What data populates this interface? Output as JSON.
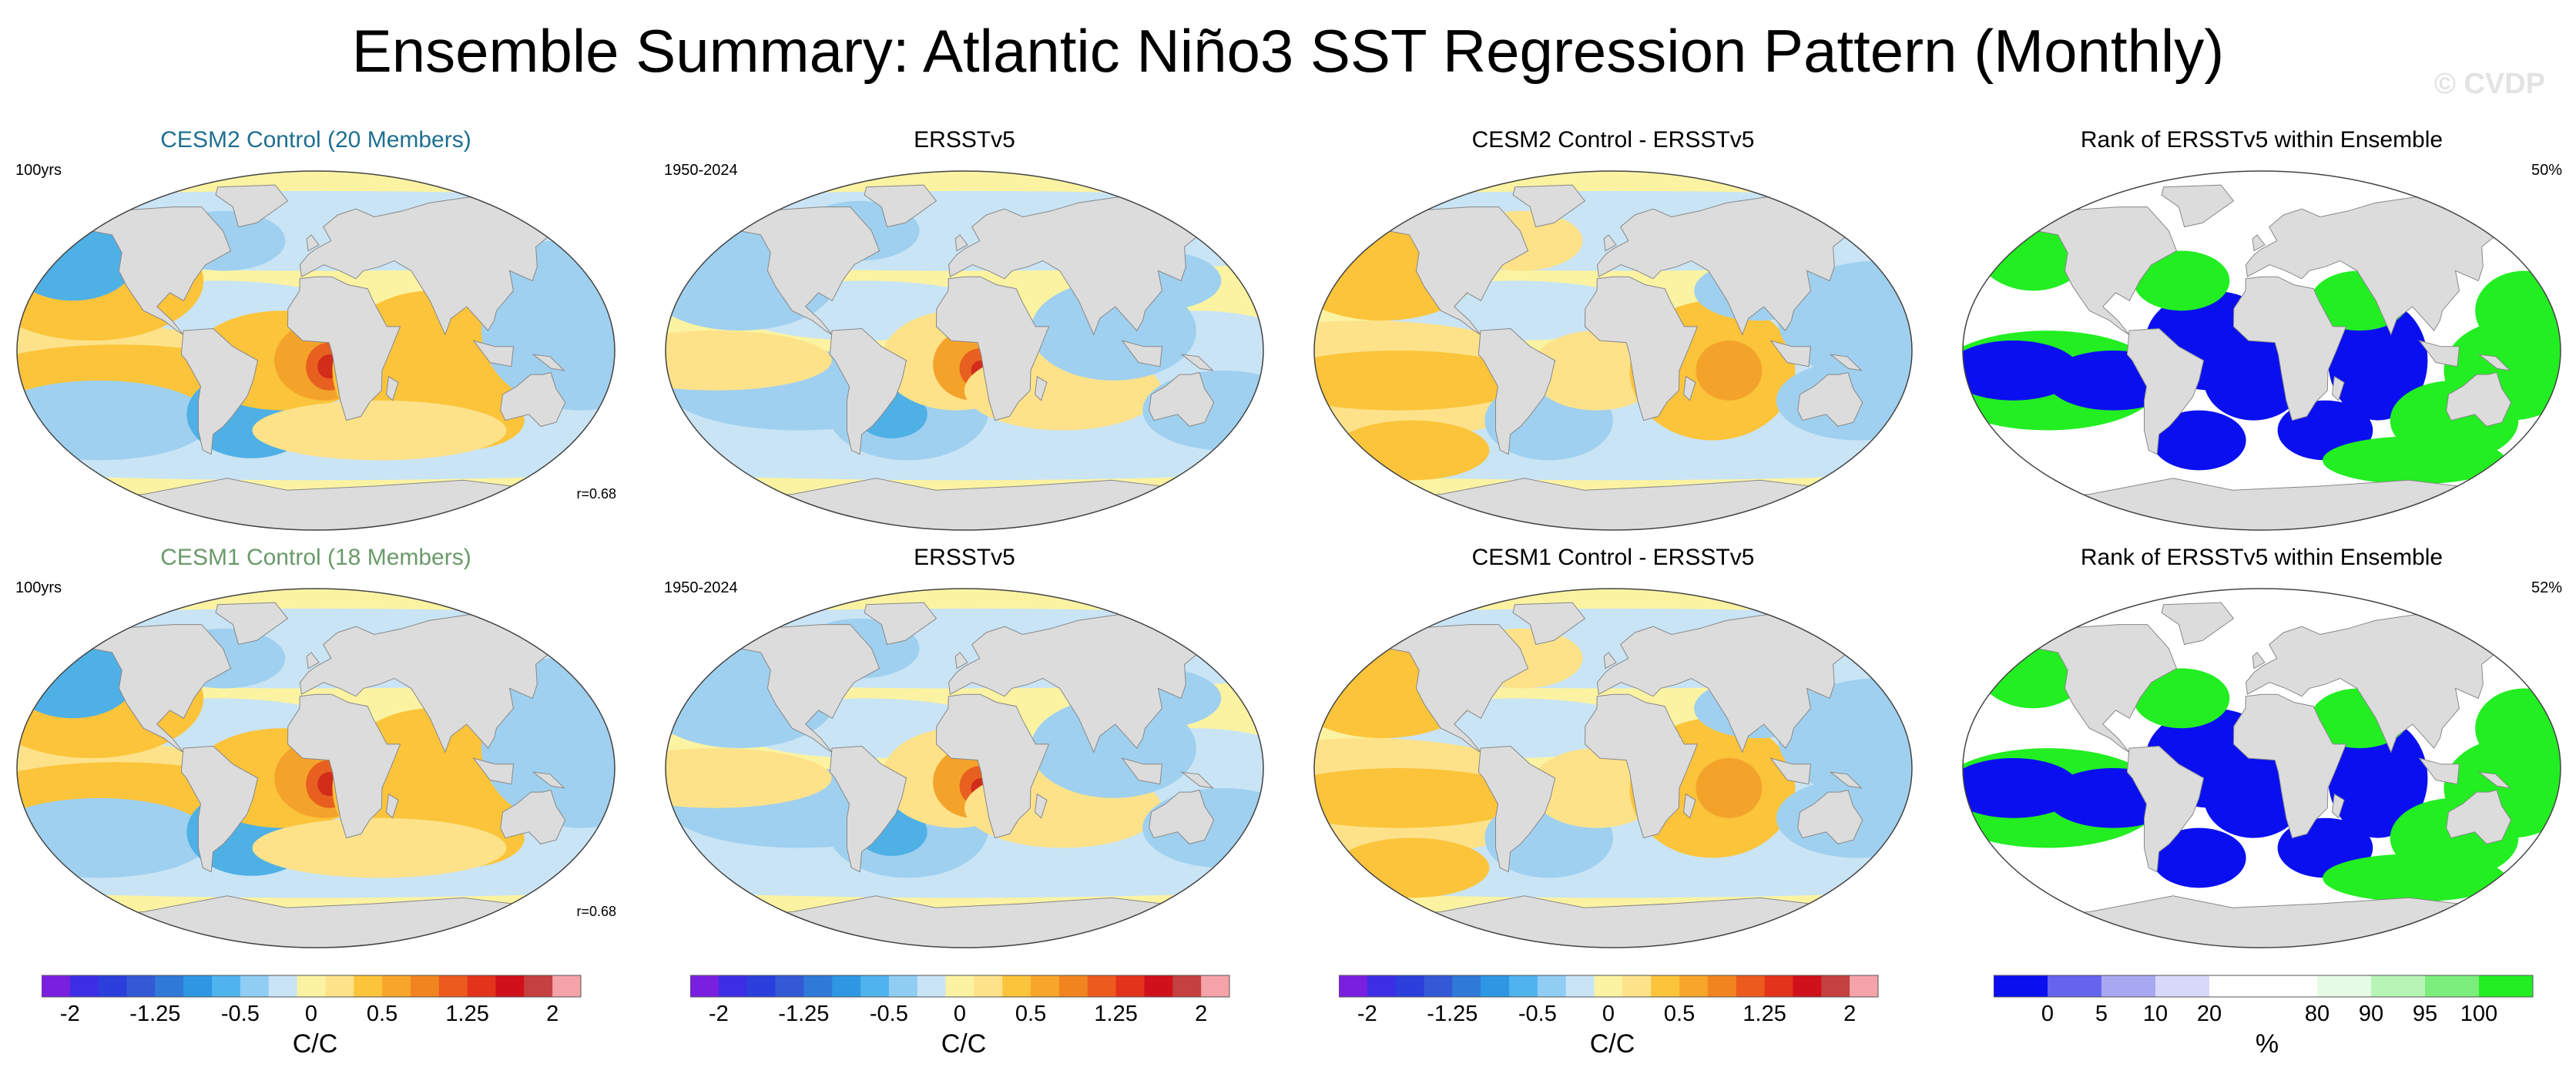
{
  "title": "Ensemble Summary: Atlantic Niño3 SST Regression Pattern (Monthly)",
  "watermark": "© CVDP",
  "colors": {
    "land": "#dcdcdc",
    "ocean_base": "#fbf3a2",
    "warm1": "#fde28a",
    "warm2": "#fbc43a",
    "warm3": "#f4a32a",
    "warm4": "#e8601f",
    "warm5": "#d22c1a",
    "cool1": "#c9e4f5",
    "cool2": "#9fd0ef",
    "cool3": "#4fb0e6",
    "rank_blue": "#0a0ff0",
    "rank_green": "#22ee22",
    "title_cesm2": "#1f6f91",
    "title_cesm1": "#6a9a6a"
  },
  "rows": [
    {
      "panels": [
        {
          "title": "CESM2 Control (20 Members)",
          "left_tag": "100yrs",
          "right_tag": "",
          "r_tag": "r=0.68",
          "kind": "model"
        },
        {
          "title": "ERSSTv5",
          "left_tag": "1950-2024",
          "right_tag": "",
          "r_tag": "",
          "kind": "obs"
        },
        {
          "title": "CESM2 Control - ERSSTv5",
          "left_tag": "",
          "right_tag": "",
          "r_tag": "",
          "kind": "diff"
        },
        {
          "title": "Rank of ERSSTv5 within Ensemble",
          "left_tag": "",
          "right_tag": "50%",
          "r_tag": "",
          "kind": "rank"
        }
      ]
    },
    {
      "panels": [
        {
          "title": "CESM1 Control (18 Members)",
          "left_tag": "100yrs",
          "right_tag": "",
          "r_tag": "r=0.68",
          "kind": "model"
        },
        {
          "title": "ERSSTv5",
          "left_tag": "1950-2024",
          "right_tag": "",
          "r_tag": "",
          "kind": "obs"
        },
        {
          "title": "CESM1 Control - ERSSTv5",
          "left_tag": "",
          "right_tag": "",
          "r_tag": "",
          "kind": "diff"
        },
        {
          "title": "Rank of ERSSTv5 within Ensemble",
          "left_tag": "",
          "right_tag": "52%",
          "r_tag": "",
          "kind": "rank"
        }
      ]
    }
  ],
  "colorbar_sst": {
    "colors": [
      "#7a1fe0",
      "#3d2ee6",
      "#2a3fdc",
      "#3459d6",
      "#2f7ad8",
      "#2d97e4",
      "#4fb3ee",
      "#8fcdf3",
      "#c9e4f5",
      "#fbf3a2",
      "#fde28a",
      "#fbc43a",
      "#f8a52b",
      "#f2841f",
      "#ec5a1d",
      "#e3331b",
      "#d0101a",
      "#c4413f",
      "#f4a3a8"
    ],
    "labels": [
      "-2",
      "-1.25",
      "-0.5",
      "0",
      "0.5",
      "1.25",
      "2"
    ],
    "label_bins": [
      1,
      4,
      7,
      9.5,
      12,
      15,
      18
    ],
    "unit": "C/C"
  },
  "colorbar_rank": {
    "colors": [
      "#0a0ff0",
      "#6464ee",
      "#a8a8f2",
      "#d8d8fa",
      "#ffffff",
      "#ffffff",
      "#e6fbe6",
      "#b6f5b6",
      "#7cee7c",
      "#22ee22"
    ],
    "labels": [
      "0",
      "5",
      "10",
      "20",
      "80",
      "90",
      "95",
      "100"
    ],
    "label_bins": [
      1,
      2,
      3,
      4,
      6,
      7,
      8,
      9
    ],
    "unit": "%"
  }
}
